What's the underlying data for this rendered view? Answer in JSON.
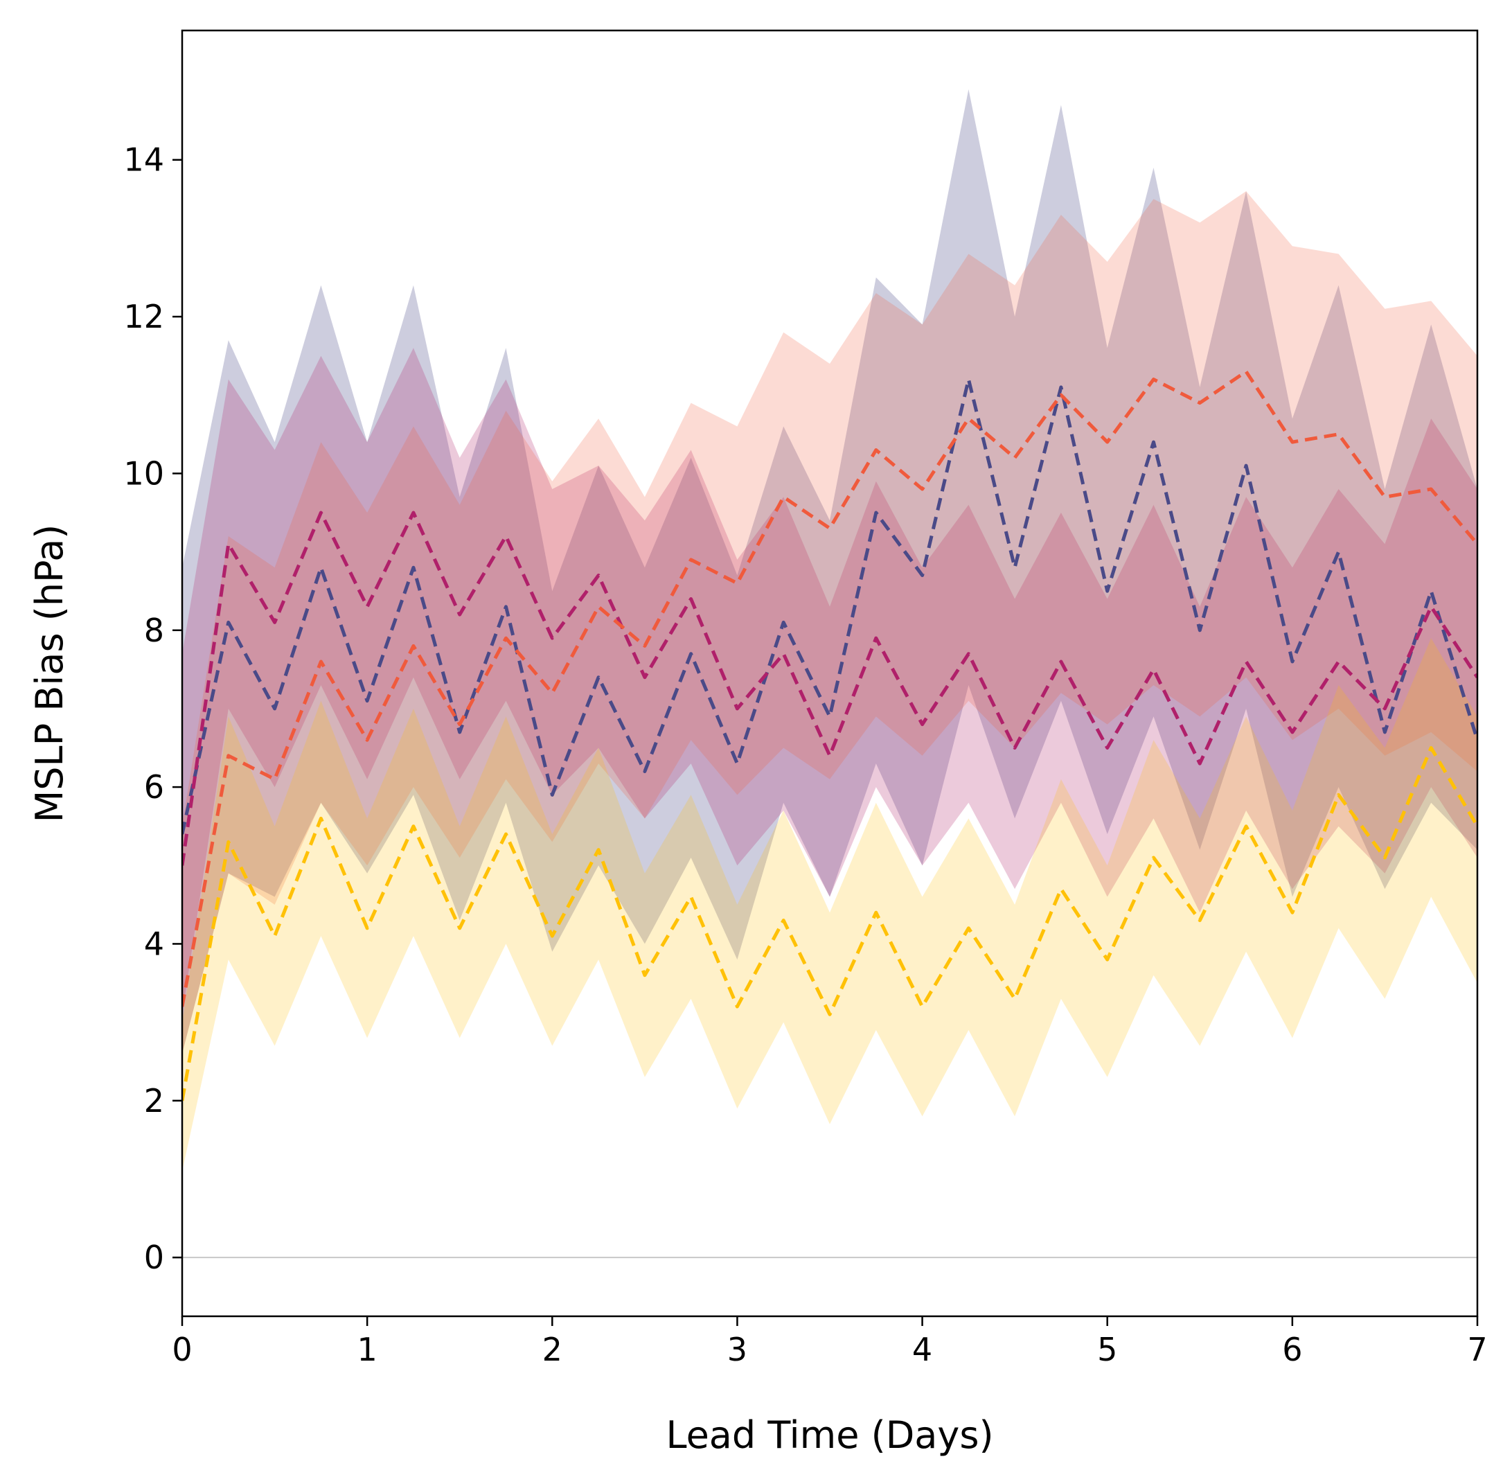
{
  "chart_data": {
    "type": "line",
    "xlabel": "Lead Time (Days)",
    "ylabel": "MSLP Bias (hPa)",
    "xlim": [
      0,
      7
    ],
    "ylim": [
      -0.75,
      15.65
    ],
    "xticks": [
      "0",
      "1",
      "2",
      "3",
      "4",
      "5",
      "6",
      "7"
    ],
    "yticks": [
      "0",
      "2",
      "4",
      "6",
      "8",
      "10",
      "12",
      "14"
    ],
    "grid": false,
    "legend": "none",
    "reference_line": {
      "y": 0,
      "color": "#c8c8c8"
    },
    "x": [
      0,
      0.25,
      0.5,
      0.75,
      1,
      1.25,
      1.5,
      1.75,
      2,
      2.25,
      2.5,
      2.75,
      3,
      3.25,
      3.5,
      3.75,
      4,
      4.25,
      4.5,
      4.75,
      5,
      5.25,
      5.5,
      5.75,
      6,
      6.25,
      6.5,
      6.75,
      7
    ],
    "series": [
      {
        "color": "#4a4a88",
        "band_opacity": 0.28,
        "line_style": "dashed",
        "mean": [
          5.4,
          8.1,
          7.0,
          8.8,
          7.1,
          8.8,
          6.7,
          8.3,
          5.9,
          7.4,
          6.2,
          7.7,
          6.3,
          8.1,
          6.9,
          9.5,
          8.7,
          11.2,
          8.8,
          11.1,
          8.5,
          10.4,
          8.0,
          10.1,
          7.6,
          9.0,
          6.7,
          8.5,
          6.6
        ],
        "upper": [
          8.8,
          11.7,
          10.4,
          12.4,
          10.4,
          12.4,
          9.7,
          11.6,
          8.5,
          10.1,
          8.8,
          10.2,
          8.7,
          10.6,
          9.4,
          12.5,
          11.9,
          14.9,
          12.0,
          14.7,
          11.6,
          13.9,
          11.1,
          13.6,
          10.7,
          12.4,
          9.8,
          11.9,
          9.8
        ],
        "lower": [
          2.6,
          4.9,
          4.6,
          5.8,
          4.9,
          5.9,
          4.3,
          5.8,
          3.9,
          5.0,
          4.0,
          5.1,
          3.8,
          5.8,
          4.6,
          6.3,
          5.0,
          7.3,
          5.6,
          7.1,
          5.4,
          6.9,
          5.2,
          7.0,
          4.6,
          6.0,
          4.7,
          5.8,
          5.2
        ]
      },
      {
        "color": "#b0206a",
        "band_opacity": 0.24,
        "line_style": "dashed",
        "mean": [
          5.0,
          9.1,
          8.1,
          9.5,
          8.3,
          9.5,
          8.2,
          9.2,
          7.9,
          8.7,
          7.4,
          8.4,
          7.0,
          7.7,
          6.4,
          7.9,
          6.8,
          7.7,
          6.5,
          7.6,
          6.5,
          7.5,
          6.3,
          7.6,
          6.7,
          7.6,
          7.0,
          8.3,
          7.4
        ],
        "upper": [
          7.7,
          11.2,
          10.3,
          11.5,
          10.4,
          11.6,
          10.2,
          11.2,
          9.8,
          10.1,
          9.4,
          10.3,
          8.9,
          9.7,
          8.3,
          9.9,
          8.8,
          9.6,
          8.4,
          9.5,
          8.4,
          9.6,
          8.3,
          9.7,
          8.8,
          9.8,
          9.1,
          10.7,
          9.8
        ],
        "lower": [
          3.1,
          7.0,
          6.0,
          7.3,
          6.1,
          7.4,
          6.1,
          7.1,
          5.9,
          6.5,
          5.6,
          6.3,
          5.0,
          5.7,
          4.6,
          6.0,
          5.0,
          5.8,
          4.7,
          5.8,
          4.6,
          5.6,
          4.4,
          5.7,
          4.7,
          5.5,
          4.9,
          6.0,
          5.1
        ]
      },
      {
        "color": "#f05a3c",
        "band_opacity": 0.22,
        "line_style": "dashed",
        "mean": [
          3.2,
          6.4,
          6.1,
          7.6,
          6.6,
          7.8,
          6.8,
          7.9,
          7.2,
          8.3,
          7.8,
          8.9,
          8.6,
          9.7,
          9.3,
          10.3,
          9.8,
          10.7,
          10.2,
          11.0,
          10.4,
          11.2,
          10.9,
          11.3,
          10.4,
          10.5,
          9.7,
          9.8,
          9.1
        ],
        "upper": [
          5.5,
          9.2,
          8.8,
          10.4,
          9.5,
          10.6,
          9.6,
          10.8,
          9.9,
          10.7,
          9.7,
          10.9,
          10.6,
          11.8,
          11.4,
          12.3,
          11.9,
          12.8,
          12.4,
          13.3,
          12.7,
          13.5,
          13.2,
          13.6,
          12.9,
          12.8,
          12.1,
          12.2,
          11.5
        ],
        "lower": [
          2.6,
          4.9,
          4.5,
          5.8,
          5.0,
          6.0,
          5.1,
          6.1,
          5.3,
          6.3,
          5.6,
          6.6,
          5.9,
          6.5,
          6.1,
          6.9,
          6.4,
          7.1,
          6.5,
          7.2,
          6.8,
          7.3,
          6.9,
          7.4,
          6.6,
          7.0,
          6.4,
          6.7,
          6.2
        ]
      },
      {
        "color": "#ffc107",
        "band_opacity": 0.22,
        "line_style": "dashed",
        "mean": [
          2.0,
          5.3,
          4.1,
          5.6,
          4.2,
          5.5,
          4.2,
          5.4,
          4.1,
          5.2,
          3.6,
          4.6,
          3.2,
          4.3,
          3.1,
          4.4,
          3.2,
          4.2,
          3.3,
          4.7,
          3.8,
          5.1,
          4.3,
          5.5,
          4.4,
          5.9,
          5.1,
          6.5,
          5.5
        ],
        "upper": [
          3.0,
          6.9,
          5.5,
          7.1,
          5.6,
          7.0,
          5.5,
          6.9,
          5.4,
          6.5,
          4.9,
          5.9,
          4.5,
          5.7,
          4.4,
          5.8,
          4.6,
          5.6,
          4.5,
          6.1,
          5.0,
          6.6,
          5.6,
          6.9,
          5.7,
          7.3,
          6.5,
          7.9,
          6.9
        ],
        "lower": [
          1.1,
          3.8,
          2.7,
          4.1,
          2.8,
          4.1,
          2.8,
          4.0,
          2.7,
          3.8,
          2.3,
          3.3,
          1.9,
          3.0,
          1.7,
          2.9,
          1.8,
          2.9,
          1.8,
          3.3,
          2.3,
          3.6,
          2.7,
          3.9,
          2.8,
          4.2,
          3.3,
          4.6,
          3.5
        ]
      }
    ]
  }
}
